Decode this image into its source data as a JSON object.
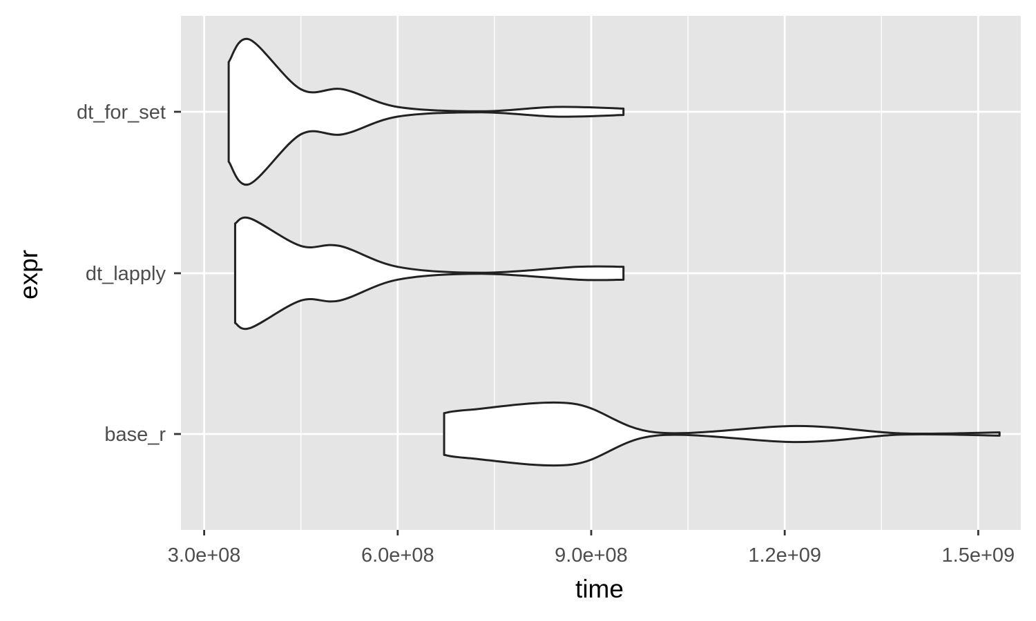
{
  "chart_data": {
    "type": "violin",
    "orientation": "horizontal",
    "title": "",
    "xlabel": "time",
    "ylabel": "expr",
    "xlim": [
      264000000,
      1566000000
    ],
    "x_ticks": [
      300000000,
      600000000,
      900000000,
      1200000000,
      1500000000
    ],
    "x_tick_labels": [
      "3.0e+08",
      "6.0e+08",
      "9.0e+08",
      "1.2e+09",
      "1.5e+09"
    ],
    "x_minor_ticks": [
      450000000,
      750000000,
      1050000000,
      1350000000
    ],
    "categories": [
      "base_r",
      "dt_lapply",
      "dt_for_set"
    ],
    "grid": true,
    "legend": "none",
    "colors": {
      "panel_background": "#e5e5e5",
      "grid": "#ffffff",
      "violin_fill": "#ffffff",
      "violin_outline": "#222222"
    },
    "series": [
      {
        "name": "dt_for_set",
        "min": 338000000,
        "max": 950000000,
        "density_profile": [
          {
            "x": 338000000,
            "w": 0.31
          },
          {
            "x": 370000000,
            "w": 0.45
          },
          {
            "x": 450000000,
            "w": 0.14
          },
          {
            "x": 515000000,
            "w": 0.14
          },
          {
            "x": 600000000,
            "w": 0.03
          },
          {
            "x": 730000000,
            "w": 0.003
          },
          {
            "x": 845000000,
            "w": 0.03
          },
          {
            "x": 950000000,
            "w": 0.02
          }
        ]
      },
      {
        "name": "dt_lapply",
        "min": 348000000,
        "max": 950000000,
        "density_profile": [
          {
            "x": 348000000,
            "w": 0.31
          },
          {
            "x": 372000000,
            "w": 0.34
          },
          {
            "x": 450000000,
            "w": 0.17
          },
          {
            "x": 510000000,
            "w": 0.17
          },
          {
            "x": 600000000,
            "w": 0.04
          },
          {
            "x": 730000000,
            "w": 0.003
          },
          {
            "x": 880000000,
            "w": 0.04
          },
          {
            "x": 950000000,
            "w": 0.04
          }
        ]
      },
      {
        "name": "base_r",
        "min": 672000000,
        "max": 1533000000,
        "density_profile": [
          {
            "x": 672000000,
            "w": 0.13
          },
          {
            "x": 710000000,
            "w": 0.15
          },
          {
            "x": 870000000,
            "w": 0.19
          },
          {
            "x": 1000000000,
            "w": 0.01
          },
          {
            "x": 1220000000,
            "w": 0.05
          },
          {
            "x": 1380000000,
            "w": 0.004
          },
          {
            "x": 1533000000,
            "w": 0.01
          }
        ]
      }
    ]
  }
}
